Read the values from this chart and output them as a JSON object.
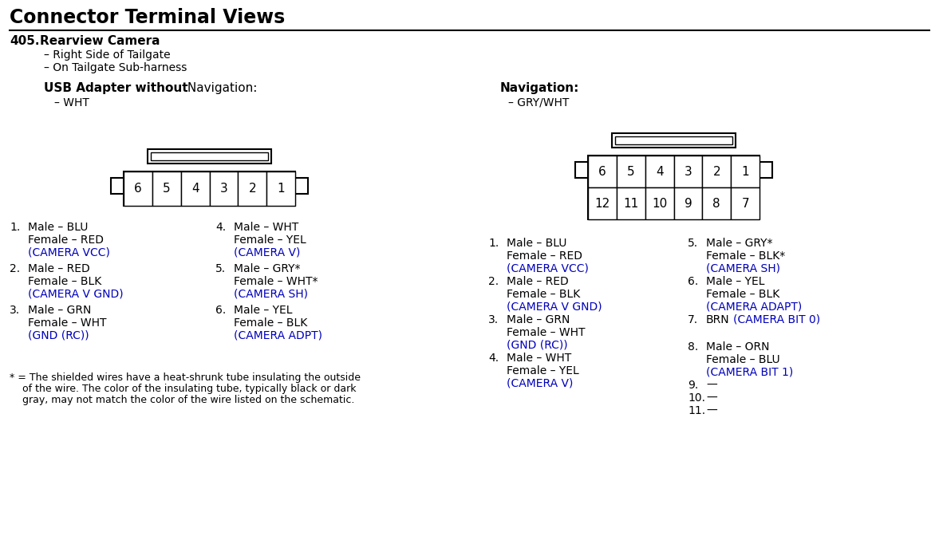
{
  "title": "Connector Terminal Views",
  "section_number": "405.",
  "section_title": "Rearview Camera",
  "bullet1": "– Right Side of Tailgate",
  "bullet2": "– On Tailgate Sub-harness",
  "left_connector_title_bold": "USB Adapter without",
  "left_connector_title_normal": " Navigation:",
  "left_connector_color": "– WHT",
  "right_connector_title": "Navigation:",
  "right_connector_color": "– GRY/WHT",
  "blue_color": "#0000BB",
  "black_color": "#000000",
  "bg_color": "#FFFFFF",
  "left_pins": [
    "6",
    "5",
    "4",
    "3",
    "2",
    "1"
  ],
  "right_pins_row1": [
    "6",
    "5",
    "4",
    "3",
    "2",
    "1"
  ],
  "right_pins_row2": [
    "12",
    "11",
    "10",
    "9",
    "8",
    "7"
  ],
  "left_entries": [
    {
      "num": "1.",
      "line1": "Male – BLU",
      "line2": "Female – RED",
      "line3": "(CAMERA VCC)"
    },
    {
      "num": "2.",
      "line1": "Male – RED",
      "line2": "Female – BLK",
      "line3": "(CAMERA V GND)"
    },
    {
      "num": "3.",
      "line1": "Male – GRN",
      "line2": "Female – WHT",
      "line3": "(GND (RC))"
    }
  ],
  "left_entries_right": [
    {
      "num": "4.",
      "line1": "Male – WHT",
      "line2": "Female – YEL",
      "line3": "(CAMERA V)"
    },
    {
      "num": "5.",
      "line1": "Male – GRY*",
      "line2": "Female – WHT*",
      "line3": "(CAMERA SH)"
    },
    {
      "num": "6.",
      "line1": "Male – YEL",
      "line2": "Female – BLK",
      "line3": "(CAMERA ADPT)"
    }
  ],
  "footnote_line1": "* = The shielded wires have a heat-shrunk tube insulating the outside",
  "footnote_line2": "    of the wire. The color of the insulating tube, typically black or dark",
  "footnote_line3": "    gray, may not match the color of the wire listed on the schematic.",
  "right_entries_left": [
    {
      "num": "1.",
      "line1": "Male – BLU",
      "line2": "Female – RED",
      "line3": "(CAMERA VCC)"
    },
    {
      "num": "2.",
      "line1": "Male – RED",
      "line2": "Female – BLK",
      "line3": "(CAMERA V GND)"
    },
    {
      "num": "3.",
      "line1": "Male – GRN",
      "line2": "Female – WHT",
      "line3": "(GND (RC))"
    },
    {
      "num": "4.",
      "line1": "Male – WHT",
      "line2": "Female – YEL",
      "line3": "(CAMERA V)"
    }
  ],
  "right_entries_right": [
    {
      "num": "5.",
      "line1": "Male – GRY*",
      "line2": "Female – BLK*",
      "line3": "(CAMERA SH)",
      "inline": false
    },
    {
      "num": "6.",
      "line1": "Male – YEL",
      "line2": "Female – BLK",
      "line3": "(CAMERA ADAPT)",
      "inline": false
    },
    {
      "num": "7.",
      "line1": "BRN",
      "line2": "",
      "line3": "(CAMERA BIT 0)",
      "inline": true
    },
    {
      "num": "8.",
      "line1": "Male – ORN",
      "line2": "Female – BLU",
      "line3": "(CAMERA BIT 1)",
      "inline": false
    },
    {
      "num": "9.",
      "line1": "—",
      "line2": "",
      "line3": "",
      "inline": false
    },
    {
      "num": "10.",
      "line1": "—",
      "line2": "",
      "line3": "",
      "inline": false
    },
    {
      "num": "11.",
      "line1": "—",
      "line2": "",
      "line3": "",
      "inline": false
    }
  ]
}
